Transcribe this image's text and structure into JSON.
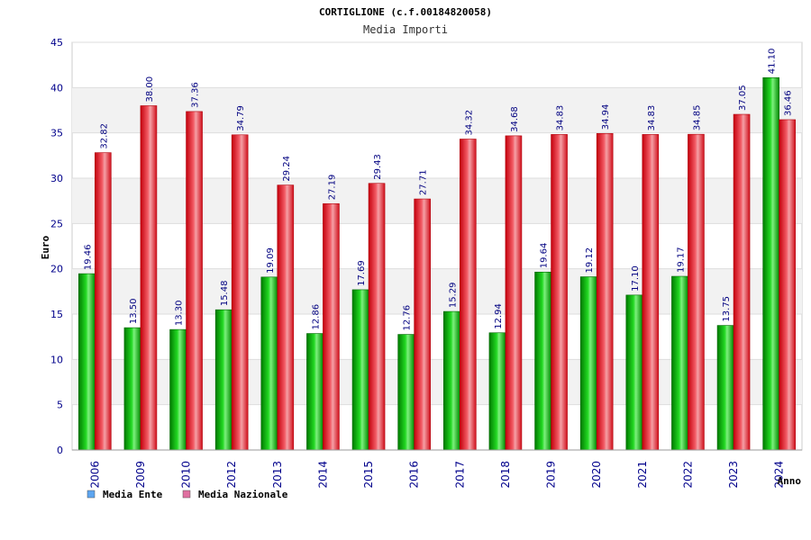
{
  "chart_data": {
    "type": "bar",
    "title": "CORTIGLIONE (c.f.00184820058)",
    "subtitle": "Media Importi",
    "xlabel": "Anno",
    "ylabel": "Euro",
    "ylim": [
      0,
      45
    ],
    "yticks": [
      "0",
      "5",
      "10",
      "15",
      "20",
      "25",
      "30",
      "35",
      "40",
      "45"
    ],
    "categories": [
      "2006",
      "2009",
      "2010",
      "2012",
      "2013",
      "2014",
      "2015",
      "2016",
      "2017",
      "2018",
      "2019",
      "2020",
      "2021",
      "2022",
      "2023",
      "2024"
    ],
    "series": [
      {
        "name": "Media Ente",
        "values": [
          19.46,
          13.5,
          13.3,
          15.48,
          19.09,
          12.86,
          17.69,
          12.76,
          15.29,
          12.94,
          19.64,
          19.12,
          17.1,
          19.17,
          13.75,
          41.1
        ],
        "labels": [
          "19.46",
          "13.50",
          "13.30",
          "15.48",
          "19.09",
          "12.86",
          "17.69",
          "12.76",
          "15.29",
          "12.94",
          "19.64",
          "19.12",
          "17.10",
          "19.17",
          "13.75",
          "41.10"
        ],
        "color": "#00aa00",
        "legend_color": "#5da5f0"
      },
      {
        "name": "Media Nazionale",
        "values": [
          32.82,
          38.0,
          37.36,
          34.79,
          29.24,
          27.19,
          29.43,
          27.71,
          34.32,
          34.68,
          34.83,
          34.94,
          34.83,
          34.85,
          37.05,
          36.46
        ],
        "labels": [
          "32.82",
          "38.00",
          "37.36",
          "34.79",
          "29.24",
          "27.19",
          "29.43",
          "27.71",
          "34.32",
          "34.68",
          "34.83",
          "34.94",
          "34.83",
          "34.85",
          "37.05",
          "36.46"
        ],
        "color": "#e8202a",
        "legend_color": "#e070a0"
      }
    ],
    "grid": true,
    "legend": "bottom-left"
  }
}
